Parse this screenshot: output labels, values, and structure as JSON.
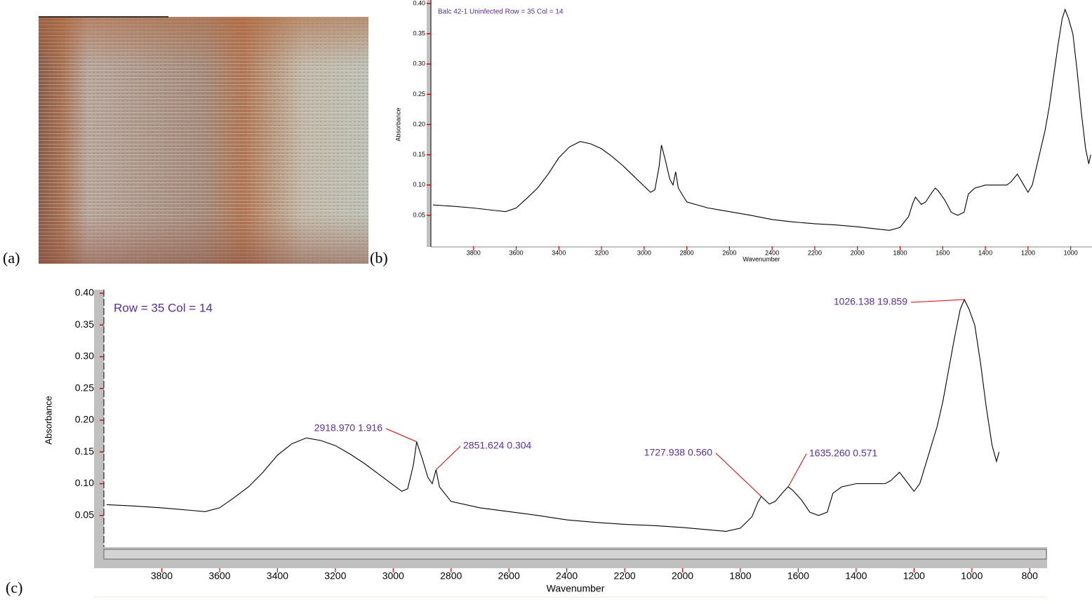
{
  "panel_labels": [
    "(a)",
    "(b)",
    "(c)"
  ],
  "chart_data": [
    {
      "type": "line",
      "title": "Balc 42-1 Uninfected Row = 35 Col = 14",
      "x_label": "Wavenumber",
      "y_label": "Absorbance",
      "color": "#000000",
      "x": [
        3990,
        3900,
        3800,
        3700,
        3650,
        3600,
        3550,
        3500,
        3450,
        3400,
        3350,
        3300,
        3250,
        3200,
        3150,
        3100,
        3050,
        3000,
        2970,
        2950,
        2930,
        2919,
        2900,
        2880,
        2865,
        2852,
        2840,
        2800,
        2700,
        2600,
        2500,
        2400,
        2300,
        2200,
        2100,
        2000,
        1900,
        1850,
        1800,
        1760,
        1740,
        1728,
        1700,
        1680,
        1650,
        1635,
        1620,
        1590,
        1560,
        1530,
        1500,
        1480,
        1450,
        1400,
        1350,
        1300,
        1280,
        1250,
        1220,
        1200,
        1180,
        1150,
        1120,
        1100,
        1080,
        1060,
        1040,
        1026,
        1010,
        990,
        970,
        950,
        930,
        915,
        906
      ],
      "values": [
        0.067,
        0.065,
        0.062,
        0.058,
        0.056,
        0.062,
        0.078,
        0.095,
        0.118,
        0.145,
        0.163,
        0.172,
        0.168,
        0.16,
        0.147,
        0.132,
        0.115,
        0.098,
        0.088,
        0.092,
        0.13,
        0.166,
        0.14,
        0.11,
        0.1,
        0.122,
        0.095,
        0.072,
        0.062,
        0.056,
        0.05,
        0.043,
        0.039,
        0.036,
        0.034,
        0.031,
        0.027,
        0.025,
        0.03,
        0.048,
        0.07,
        0.08,
        0.068,
        0.072,
        0.088,
        0.095,
        0.09,
        0.075,
        0.055,
        0.05,
        0.055,
        0.085,
        0.095,
        0.1,
        0.1,
        0.1,
        0.105,
        0.118,
        0.1,
        0.088,
        0.1,
        0.145,
        0.19,
        0.23,
        0.28,
        0.33,
        0.375,
        0.39,
        0.375,
        0.35,
        0.29,
        0.22,
        0.16,
        0.135,
        0.15
      ],
      "xlim": [
        4000,
        900
      ],
      "xticks": [
        3800,
        3600,
        3400,
        3200,
        3000,
        2800,
        2600,
        2400,
        2200,
        2000,
        1800,
        1600,
        1400,
        1200,
        1000
      ],
      "ylim": [
        0,
        0.4
      ],
      "yticks": [
        0.05,
        {
          "value": 0.1,
          "label": "0.10"
        },
        0.15,
        {
          "value": 0.2,
          "label": "0.20"
        },
        0.25,
        {
          "value": 0.3,
          "label": "0.30"
        },
        0.35,
        {
          "value": 0.4,
          "label": "0.40"
        }
      ]
    },
    {
      "type": "line",
      "title": "Row = 35 Col = 14",
      "x_label": "Wavenumber",
      "y_label": "Absorbance",
      "color": "#000000",
      "x": [
        3990,
        3900,
        3800,
        3700,
        3650,
        3600,
        3550,
        3500,
        3450,
        3400,
        3350,
        3300,
        3250,
        3200,
        3150,
        3100,
        3050,
        3000,
        2970,
        2950,
        2930,
        2919,
        2900,
        2880,
        2865,
        2852,
        2840,
        2800,
        2700,
        2600,
        2500,
        2400,
        2300,
        2200,
        2100,
        2000,
        1900,
        1850,
        1800,
        1760,
        1740,
        1728,
        1700,
        1680,
        1650,
        1635,
        1620,
        1590,
        1560,
        1530,
        1500,
        1480,
        1450,
        1400,
        1350,
        1300,
        1280,
        1250,
        1220,
        1200,
        1180,
        1150,
        1120,
        1100,
        1080,
        1060,
        1040,
        1026,
        1010,
        990,
        970,
        950,
        930,
        915,
        906
      ],
      "values": [
        0.067,
        0.065,
        0.062,
        0.058,
        0.056,
        0.062,
        0.078,
        0.095,
        0.118,
        0.145,
        0.163,
        0.172,
        0.168,
        0.16,
        0.147,
        0.132,
        0.115,
        0.098,
        0.088,
        0.092,
        0.13,
        0.166,
        0.14,
        0.11,
        0.1,
        0.122,
        0.095,
        0.072,
        0.062,
        0.056,
        0.05,
        0.043,
        0.039,
        0.036,
        0.034,
        0.031,
        0.027,
        0.025,
        0.03,
        0.048,
        0.07,
        0.08,
        0.068,
        0.072,
        0.088,
        0.095,
        0.09,
        0.075,
        0.055,
        0.05,
        0.055,
        0.085,
        0.095,
        0.1,
        0.1,
        0.1,
        0.105,
        0.118,
        0.1,
        0.088,
        0.1,
        0.145,
        0.19,
        0.23,
        0.28,
        0.33,
        0.375,
        0.39,
        0.375,
        0.35,
        0.29,
        0.22,
        0.16,
        0.135,
        0.15
      ],
      "xlim": [
        4000,
        740
      ],
      "xticks": [
        3800,
        3600,
        3400,
        3200,
        3000,
        2800,
        2600,
        2400,
        2200,
        2000,
        1800,
        1600,
        1400,
        1200,
        1000,
        800
      ],
      "ylim": [
        0,
        0.4
      ],
      "yticks": [
        0.05,
        {
          "value": 0.1,
          "label": "0.10"
        },
        0.15,
        {
          "value": 0.2,
          "label": "0.20"
        },
        0.25,
        {
          "value": 0.3,
          "label": "0.30"
        },
        0.35,
        {
          "value": 0.4,
          "label": "0.40"
        }
      ],
      "annotations": [
        {
          "text": "2918.970  1.916",
          "x": 2919,
          "y": 0.166
        },
        {
          "text": "2851.624  0.304",
          "x": 2852,
          "y": 0.122
        },
        {
          "text": "1727.938  0.560",
          "x": 1728,
          "y": 0.08
        },
        {
          "text": "1635.260  0.571",
          "x": 1635,
          "y": 0.095
        },
        {
          "text": "1026.138  19.859",
          "x": 1026,
          "y": 0.39
        }
      ]
    }
  ]
}
